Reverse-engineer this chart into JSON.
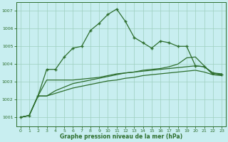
{
  "x": [
    0,
    1,
    2,
    3,
    4,
    5,
    6,
    7,
    8,
    9,
    10,
    11,
    12,
    13,
    14,
    15,
    16,
    17,
    18,
    19,
    20,
    21,
    22,
    23
  ],
  "y_main": [
    1001.0,
    1001.1,
    1002.2,
    1003.7,
    1003.7,
    1004.4,
    1004.9,
    1005.0,
    1005.9,
    1006.3,
    1006.8,
    1007.1,
    1006.4,
    1005.5,
    1005.2,
    1004.9,
    1005.3,
    1005.2,
    1005.0,
    1005.0,
    1003.9,
    1003.85,
    1003.5,
    1003.4
  ],
  "y_sm1": [
    1001.0,
    1001.1,
    1002.2,
    1003.1,
    1003.1,
    1003.1,
    1003.1,
    1003.15,
    1003.2,
    1003.25,
    1003.35,
    1003.45,
    1003.5,
    1003.55,
    1003.6,
    1003.65,
    1003.7,
    1003.75,
    1003.8,
    1003.85,
    1003.9,
    1003.85,
    1003.5,
    1003.45
  ],
  "y_sm2": [
    1001.0,
    1001.1,
    1002.2,
    1002.2,
    1002.5,
    1002.7,
    1002.9,
    1003.0,
    1003.1,
    1003.2,
    1003.3,
    1003.4,
    1003.5,
    1003.55,
    1003.65,
    1003.7,
    1003.75,
    1003.85,
    1004.0,
    1004.35,
    1004.4,
    1003.9,
    1003.4,
    1003.4
  ],
  "y_sm3": [
    1001.0,
    1001.1,
    1002.2,
    1002.2,
    1002.35,
    1002.5,
    1002.65,
    1002.75,
    1002.85,
    1002.95,
    1003.05,
    1003.1,
    1003.2,
    1003.25,
    1003.35,
    1003.4,
    1003.45,
    1003.5,
    1003.55,
    1003.6,
    1003.65,
    1003.55,
    1003.4,
    1003.35
  ],
  "ylim": [
    1000.5,
    1007.5
  ],
  "xlim": [
    -0.5,
    23.5
  ],
  "yticks": [
    1001,
    1002,
    1003,
    1004,
    1005,
    1006,
    1007
  ],
  "xticks": [
    0,
    1,
    2,
    3,
    4,
    5,
    6,
    7,
    8,
    9,
    10,
    11,
    12,
    13,
    14,
    15,
    16,
    17,
    18,
    19,
    20,
    21,
    22,
    23
  ],
  "xlabel": "Graphe pression niveau de la mer (hPa)",
  "line_color": "#2d6e2d",
  "bg_color": "#c8eef0",
  "grid_color": "#9ecfbf"
}
